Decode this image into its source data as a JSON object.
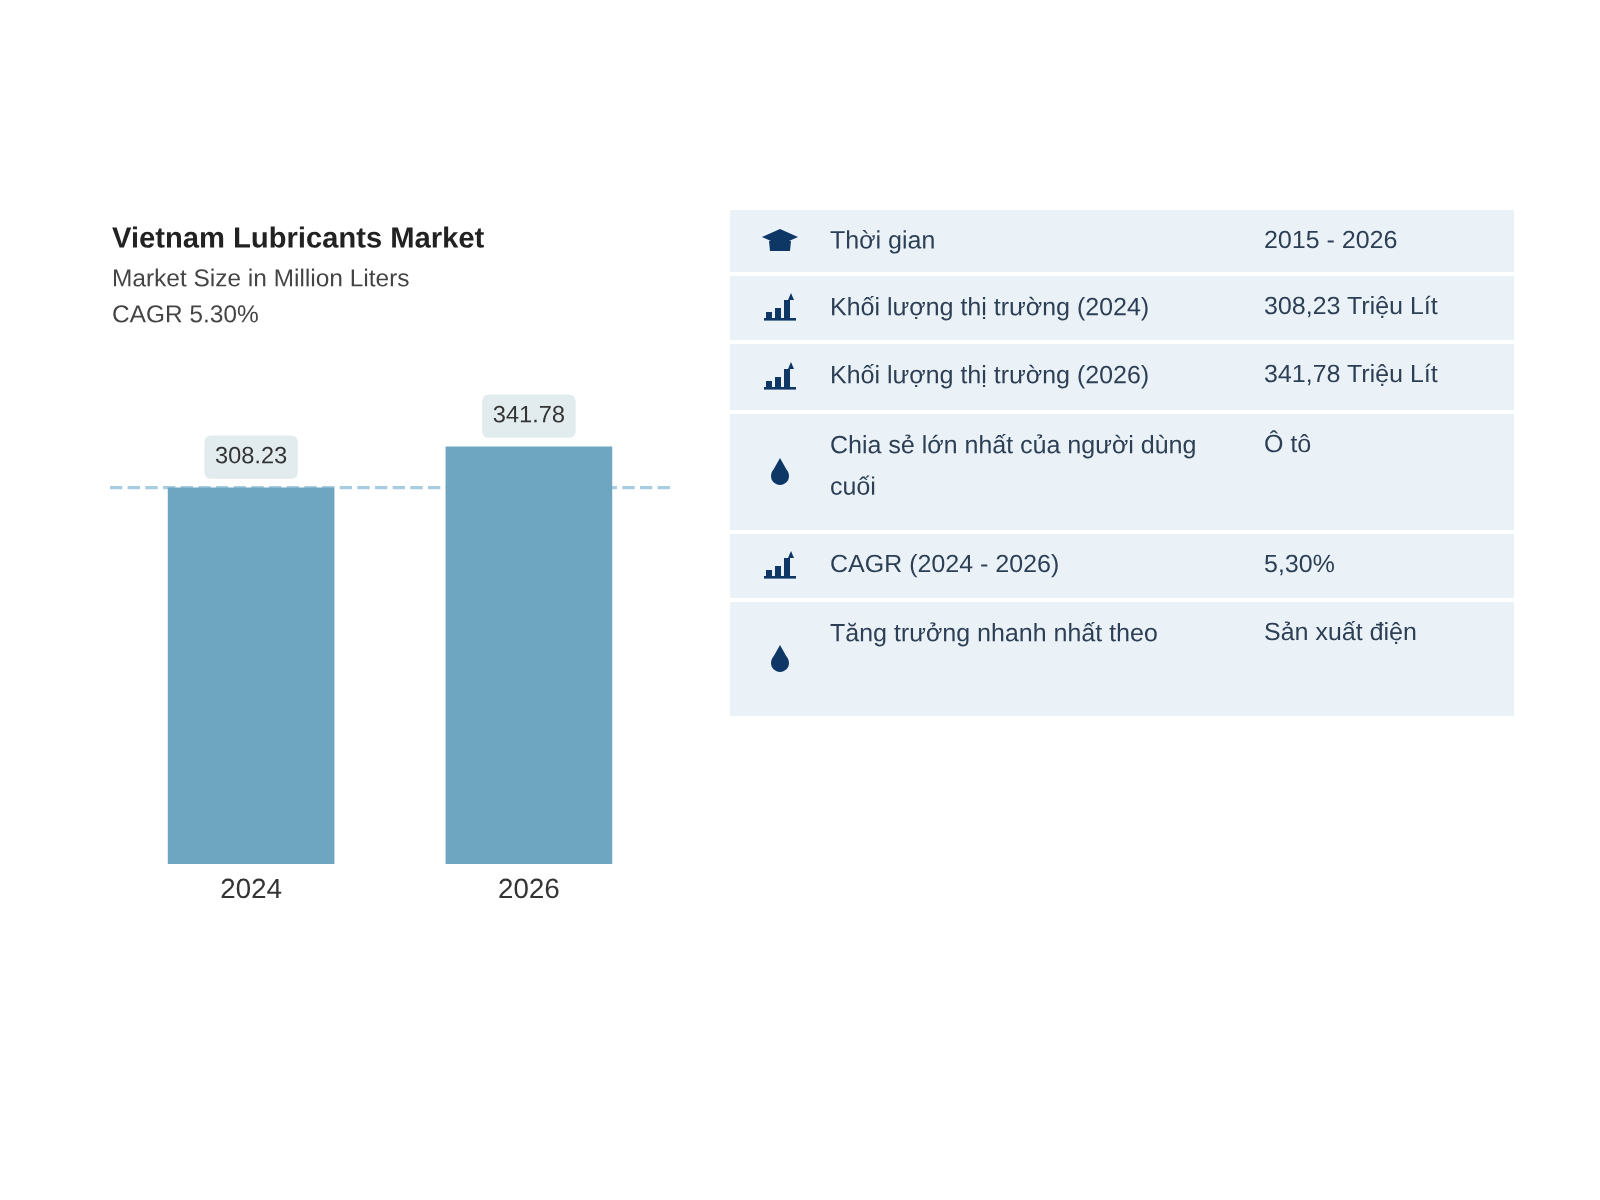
{
  "chart_data": [
    {
      "type": "bar",
      "title": "Vietnam Lubricants Market",
      "subtitle": "Market Size in Million Liters",
      "annotations": [
        "CAGR 5.30%"
      ],
      "categories": [
        "2024",
        "2026"
      ],
      "values": [
        308.23,
        341.78
      ],
      "color": "#6ea6c2",
      "data_labels": true,
      "ref_lines": [
        {
          "axis": "y",
          "value": 308.23,
          "color": "#a9cde0",
          "line_style": "dashed"
        }
      ],
      "tick_labels": "x"
    },
    {
      "type": "other",
      "annotations": [
        "Thời gian",
        "2015 - 2026",
        "Khối lượng thị trường (2024)",
        "308,23 Triệu Lít",
        "Khối lượng thị trường (2026)",
        "341,78 Triệu Lít",
        "Chia sẻ lớn nhất của người dùng cuối",
        "Ô tô",
        "CAGR (2024 - 2026)",
        "5,30%",
        "Tăng trưởng nhanh nhất theo",
        "Sản xuất điện"
      ]
    }
  ]
}
